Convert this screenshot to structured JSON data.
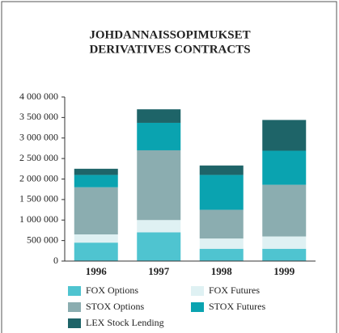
{
  "chart_data": {
    "type": "stacked_bar",
    "title": [
      "JOHDANNAISSOPIMUKSET",
      "DERIVATIVES CONTRACTS"
    ],
    "categories": [
      "1996",
      "1997",
      "1998",
      "1999"
    ],
    "series": [
      {
        "name": "FOX Options",
        "color": "#4fc4d0",
        "values": [
          450000,
          700000,
          300000,
          300000
        ]
      },
      {
        "name": "FOX Futures",
        "color": "#dff1f3",
        "values": [
          200000,
          300000,
          250000,
          300000
        ]
      },
      {
        "name": "STOX Options",
        "color": "#8badb0",
        "values": [
          1150000,
          1700000,
          700000,
          1260000
        ]
      },
      {
        "name": "STOX Futures",
        "color": "#0aa3b0",
        "values": [
          300000,
          670000,
          850000,
          830000
        ]
      },
      {
        "name": "LEX Stock Lending",
        "color": "#1e6468",
        "values": [
          150000,
          330000,
          230000,
          750000
        ]
      }
    ],
    "ylim": [
      0,
      4000000
    ],
    "yticks": [
      0,
      {
        "value": 500000,
        "label": "500 000"
      },
      {
        "value": 1000000,
        "label": "1 000 000"
      },
      {
        "value": 1500000,
        "label": "1 500 000"
      },
      {
        "value": 2000000,
        "label": "2 000 000"
      },
      {
        "value": 2500000,
        "label": "2 500 000"
      },
      {
        "value": 3000000,
        "label": "3 000 000"
      },
      {
        "value": 3500000,
        "label": "3 500 000"
      },
      {
        "value": 4000000,
        "label": "4 000 000"
      }
    ]
  }
}
